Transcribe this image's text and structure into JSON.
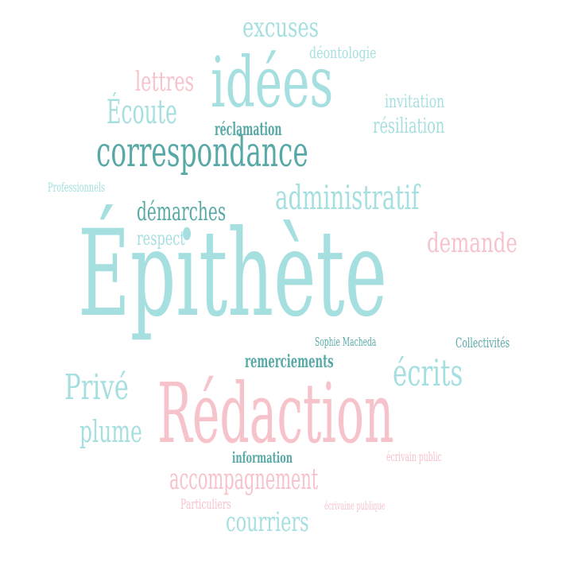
{
  "palette": {
    "mint": "#a6dfe0",
    "teal": "#58a9a6",
    "pink": "#f7c3cb",
    "background": "#ffffff"
  },
  "words": {
    "epithete": "Épithète",
    "redaction": "Rédaction",
    "idees": "idées",
    "correspondance": "correspondance",
    "administratif": "administratif",
    "demarches": "démarches",
    "demande": "demande",
    "ecrits": "écrits",
    "prive": "Privé",
    "plume": "plume",
    "accompagnement": "accompagnement",
    "courriers": "courriers",
    "ecoute": "Écoute",
    "lettres": "lettres",
    "excuses": "excuses",
    "deontologie": "déontologie",
    "invitation": "invitation",
    "resiliation": "résiliation",
    "reclamation": "réclamation",
    "professionnels": "Professionnels",
    "respect": "respect",
    "sophie_macheda": "Sophie Macheda",
    "collectivites": "Collectivités",
    "remerciements": "remerciements",
    "information": "information",
    "ecrivain_public": "écrivain public",
    "particuliers": "Particuliers",
    "ecrivaine_publique": "écrivaine publique"
  }
}
